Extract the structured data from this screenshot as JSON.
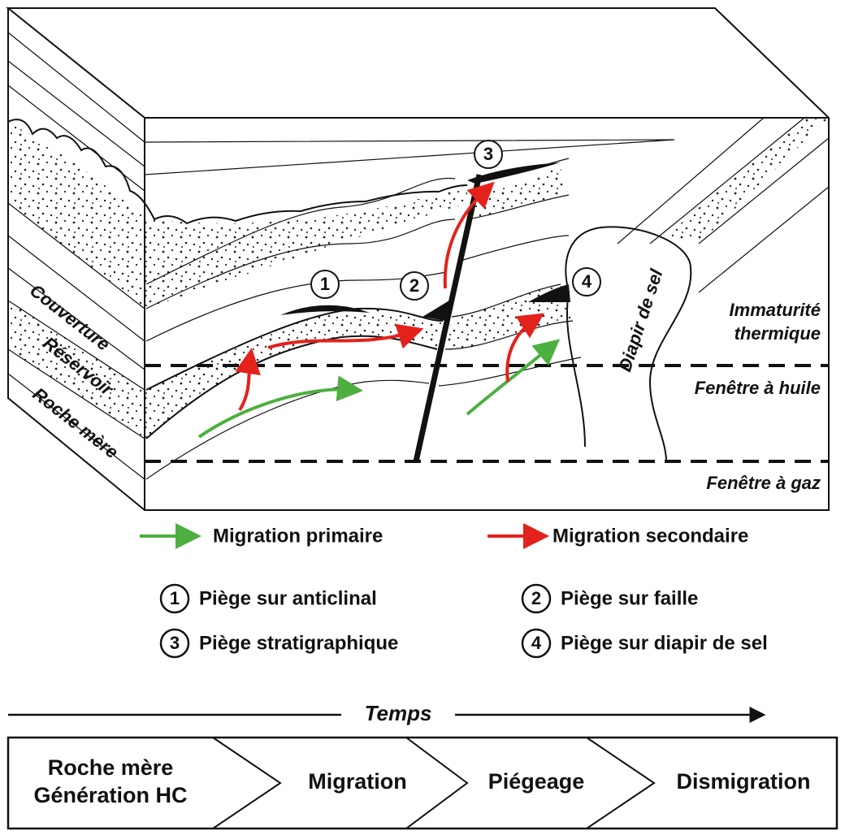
{
  "block": {
    "layers": [
      "Couverture",
      "Réservoir",
      "Roche mère"
    ],
    "traps": [
      "1",
      "2",
      "3",
      "4"
    ],
    "diapir": "Diapir de sel",
    "zones": {
      "immature": [
        "Immaturité",
        "thermique"
      ],
      "oil": "Fenêtre à huile",
      "gas": "Fenêtre à gaz"
    }
  },
  "legend": {
    "primary": "Migration primaire",
    "secondary": "Migration secondaire",
    "traps": [
      {
        "number": "1",
        "label": "Piège sur anticlinal"
      },
      {
        "number": "2",
        "label": "Piège sur faille"
      },
      {
        "number": "3",
        "label": "Piège stratigraphique"
      },
      {
        "number": "4",
        "label": "Piège sur diapir de sel"
      }
    ]
  },
  "timeline": {
    "label": "Temps",
    "steps": [
      [
        "Roche mère",
        "Génération HC"
      ],
      [
        "Migration"
      ],
      [
        "Piégeage"
      ],
      [
        "Dismigration"
      ]
    ]
  }
}
